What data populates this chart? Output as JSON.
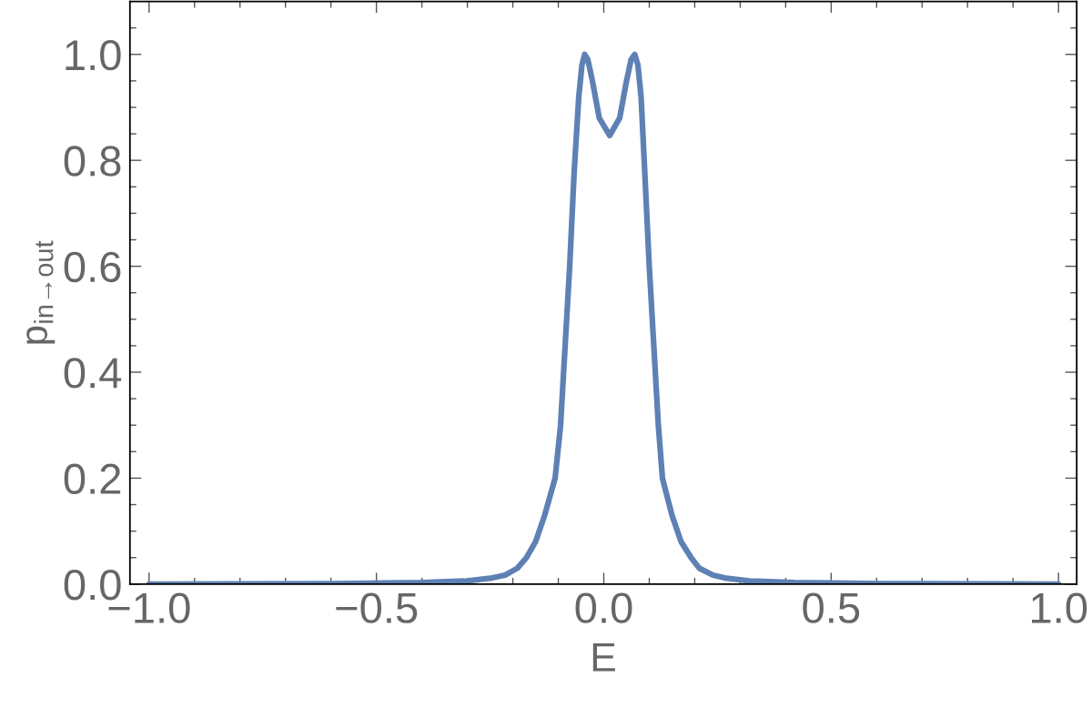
{
  "chart_data": {
    "type": "line",
    "xlabel": "E",
    "ylabel": "p$_{in→out}$",
    "x": [
      -1.0,
      -0.6,
      -0.4,
      -0.3,
      -0.25,
      -0.217,
      -0.19,
      -0.17,
      -0.15,
      -0.13,
      -0.107,
      -0.095,
      -0.085,
      -0.075,
      -0.065,
      -0.055,
      -0.048,
      -0.042,
      -0.035,
      -0.025,
      -0.01,
      0.013,
      0.035,
      0.05,
      0.06,
      0.068,
      0.075,
      0.082,
      0.09,
      0.1,
      0.11,
      0.12,
      0.129,
      0.15,
      0.17,
      0.192,
      0.21,
      0.24,
      0.27,
      0.32,
      0.42,
      0.62,
      1.0
    ],
    "series": [
      {
        "color": "#5e81b5",
        "values": [
          0.0,
          0.001,
          0.003,
          0.006,
          0.011,
          0.017,
          0.03,
          0.05,
          0.08,
          0.13,
          0.2,
          0.3,
          0.45,
          0.6,
          0.78,
          0.92,
          0.98,
          1.0,
          0.99,
          0.95,
          0.88,
          0.847,
          0.88,
          0.95,
          0.99,
          1.0,
          0.98,
          0.92,
          0.78,
          0.6,
          0.45,
          0.3,
          0.2,
          0.13,
          0.08,
          0.05,
          0.03,
          0.017,
          0.011,
          0.006,
          0.003,
          0.001,
          0.0
        ]
      }
    ],
    "xlim": [
      -1.042,
      1.04
    ],
    "ylim": [
      0,
      1.1
    ],
    "xticks": [
      {
        "value": -1.0,
        "label": "−1.0"
      },
      {
        "value": -0.9,
        "label": null
      },
      {
        "value": -0.8,
        "label": null
      },
      {
        "value": -0.7,
        "label": null
      },
      {
        "value": -0.6,
        "label": null
      },
      {
        "value": -0.5,
        "label": "−0.5"
      },
      {
        "value": -0.4,
        "label": null
      },
      {
        "value": -0.3,
        "label": null
      },
      {
        "value": -0.2,
        "label": null
      },
      {
        "value": -0.1,
        "label": null
      },
      {
        "value": 0.0,
        "label": "0.0"
      },
      {
        "value": 0.1,
        "label": null
      },
      {
        "value": 0.2,
        "label": null
      },
      {
        "value": 0.3,
        "label": null
      },
      {
        "value": 0.4,
        "label": null
      },
      {
        "value": 0.5,
        "label": "0.5"
      },
      {
        "value": 0.6,
        "label": null
      },
      {
        "value": 0.7,
        "label": null
      },
      {
        "value": 0.8,
        "label": null
      },
      {
        "value": 0.9,
        "label": null
      },
      {
        "value": 1.0,
        "label": "1.0"
      }
    ],
    "yticks": [
      {
        "value": 0.0,
        "label": "0.0"
      },
      {
        "value": 0.05,
        "label": null
      },
      {
        "value": 0.1,
        "label": null
      },
      {
        "value": 0.15,
        "label": null
      },
      {
        "value": 0.2,
        "label": "0.2"
      },
      {
        "value": 0.25,
        "label": null
      },
      {
        "value": 0.3,
        "label": null
      },
      {
        "value": 0.35,
        "label": null
      },
      {
        "value": 0.4,
        "label": "0.4"
      },
      {
        "value": 0.45,
        "label": null
      },
      {
        "value": 0.5,
        "label": null
      },
      {
        "value": 0.55,
        "label": null
      },
      {
        "value": 0.6,
        "label": "0.6"
      },
      {
        "value": 0.65,
        "label": null
      },
      {
        "value": 0.7,
        "label": null
      },
      {
        "value": 0.75,
        "label": null
      },
      {
        "value": 0.8,
        "label": "0.8"
      },
      {
        "value": 0.85,
        "label": null
      },
      {
        "value": 0.9,
        "label": null
      },
      {
        "value": 0.95,
        "label": null
      },
      {
        "value": 1.0,
        "label": "1.0"
      },
      {
        "value": 1.05,
        "label": null
      }
    ],
    "grid": false,
    "legend": false
  }
}
